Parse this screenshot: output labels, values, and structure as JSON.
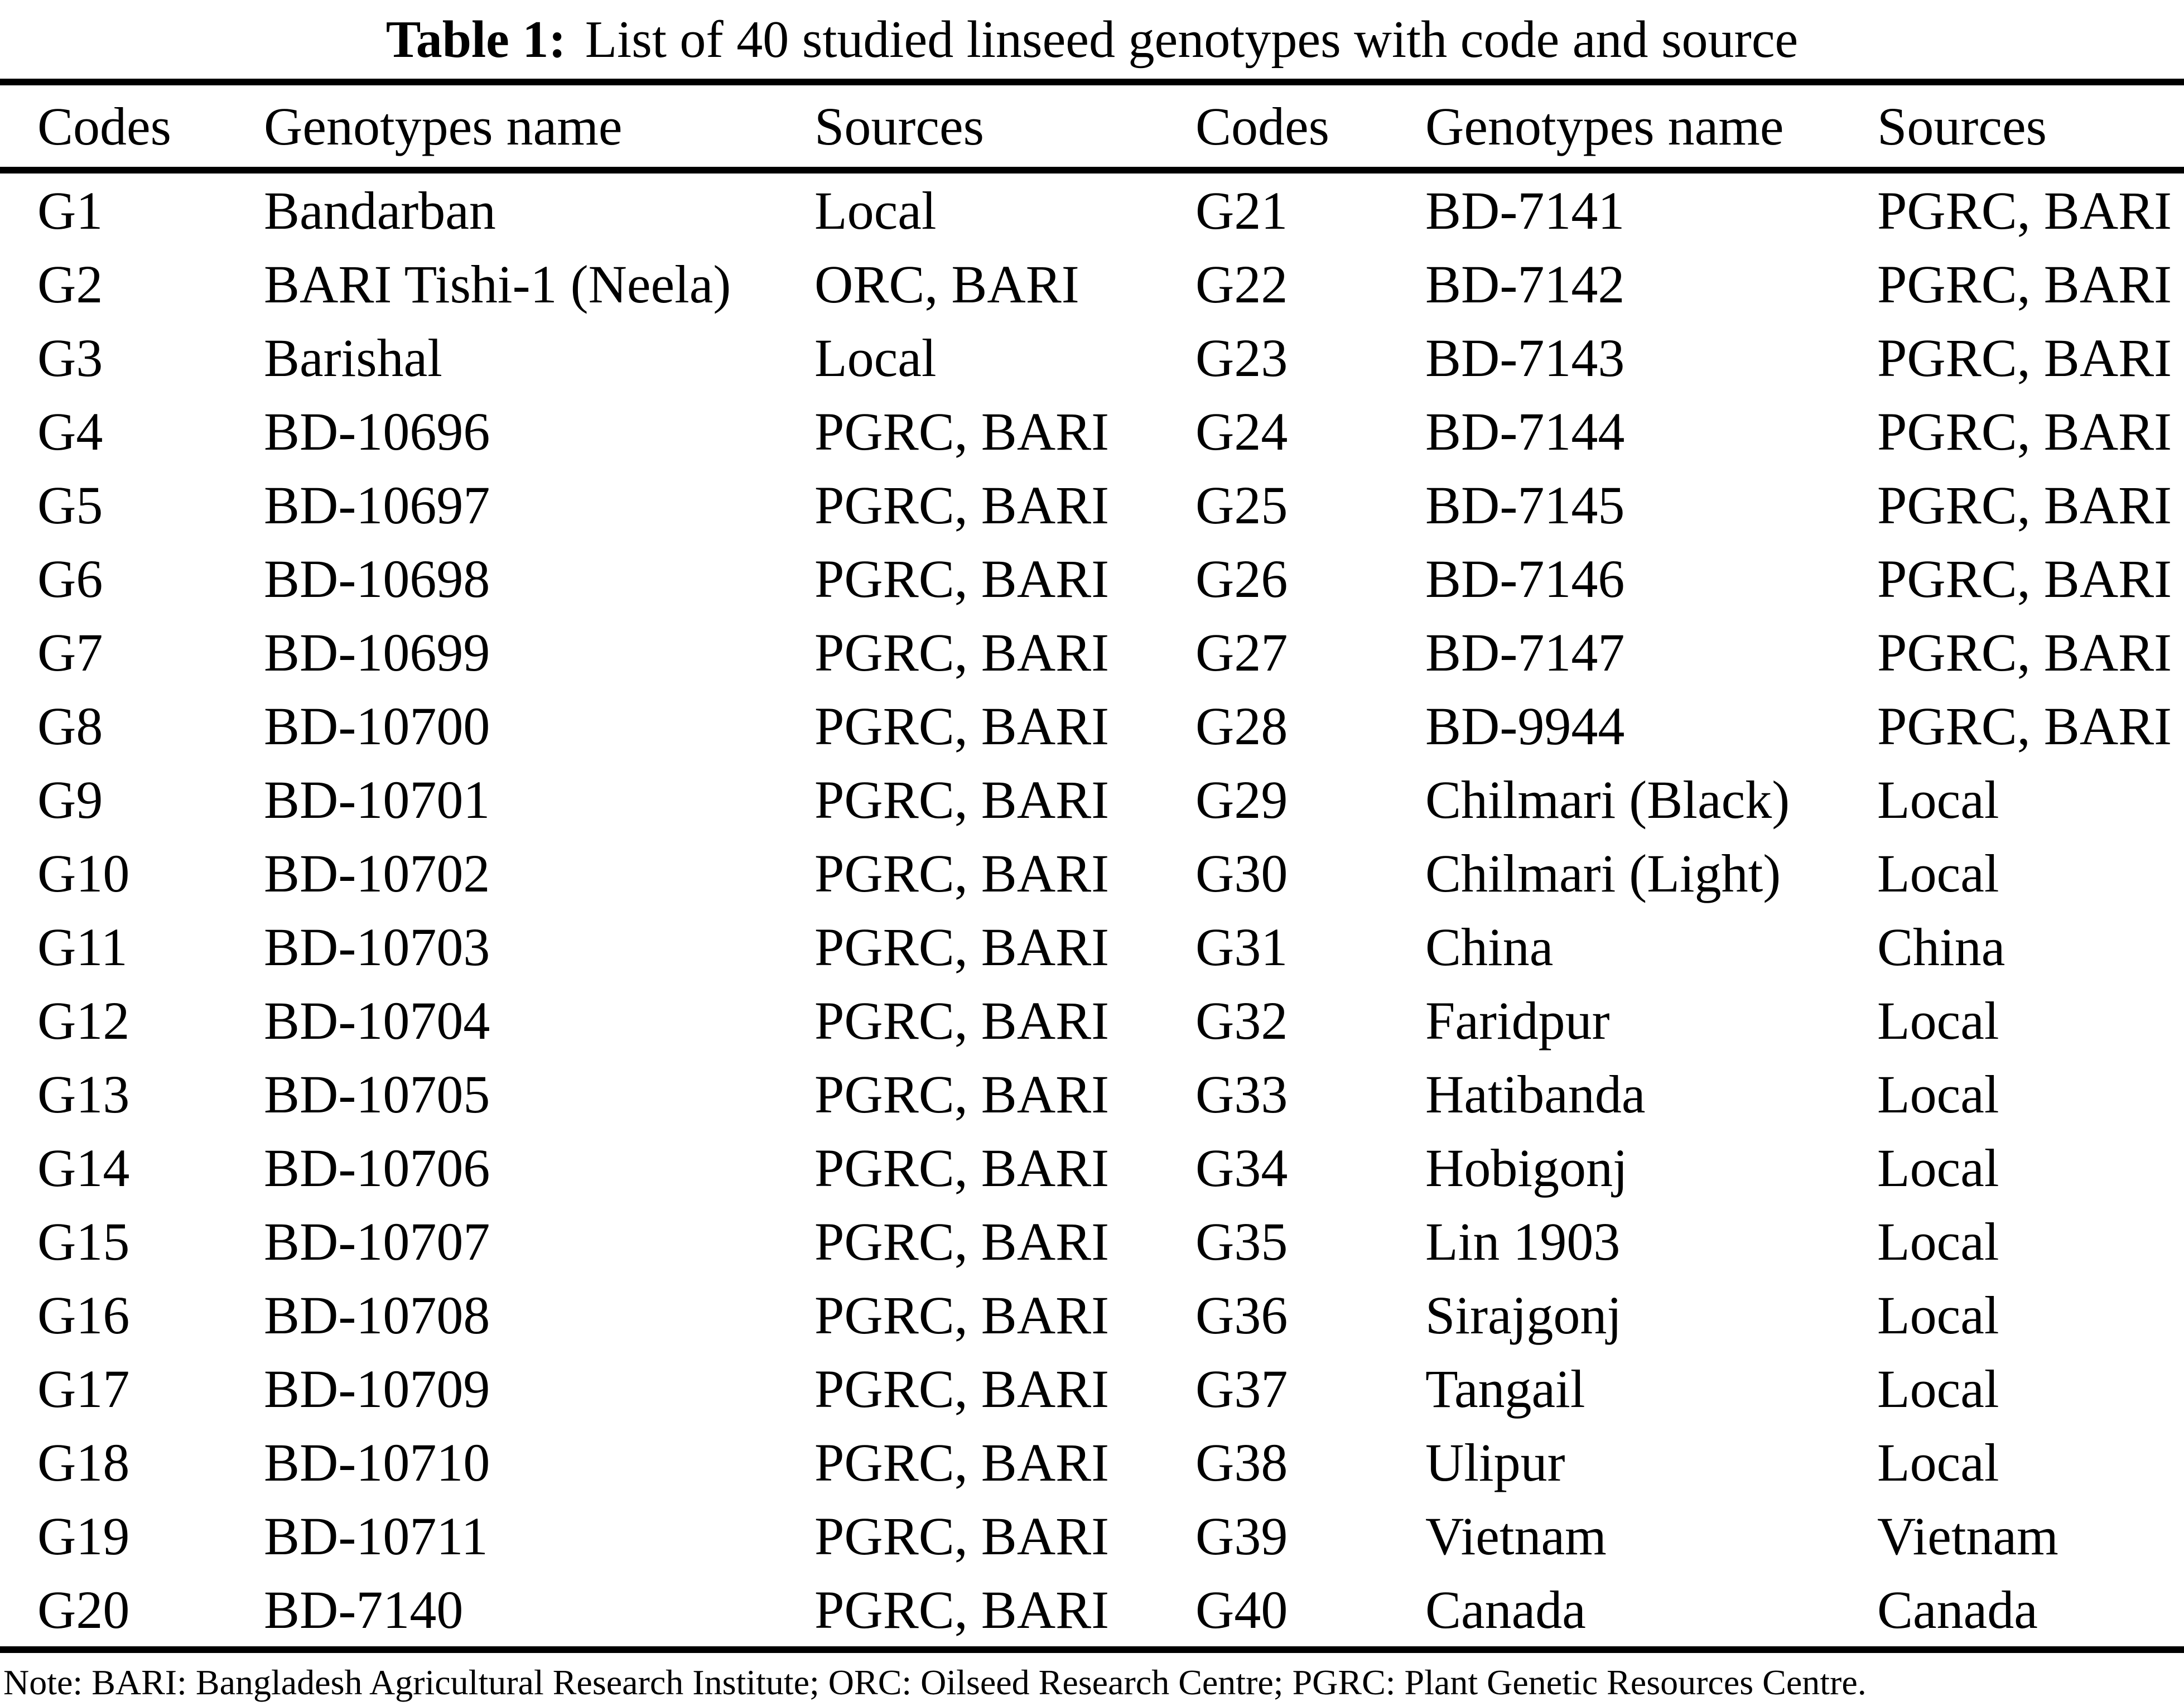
{
  "title": {
    "label": "Table 1:",
    "text": "List of 40 studied linseed genotypes with code and source"
  },
  "table": {
    "headers": [
      "Codes",
      "Genotypes name",
      "Sources",
      "Codes",
      "Genotypes name",
      "Sources"
    ],
    "rows": [
      [
        "G1",
        "Bandarban",
        "Local",
        "G21",
        "BD-7141",
        "PGRC, BARI"
      ],
      [
        "G2",
        "BARI Tishi-1 (Neela)",
        "ORC, BARI",
        "G22",
        "BD-7142",
        "PGRC, BARI"
      ],
      [
        "G3",
        "Barishal",
        "Local",
        "G23",
        "BD-7143",
        "PGRC, BARI"
      ],
      [
        "G4",
        "BD-10696",
        "PGRC, BARI",
        "G24",
        "BD-7144",
        "PGRC, BARI"
      ],
      [
        "G5",
        "BD-10697",
        "PGRC, BARI",
        "G25",
        "BD-7145",
        "PGRC, BARI"
      ],
      [
        "G6",
        "BD-10698",
        "PGRC, BARI",
        "G26",
        "BD-7146",
        "PGRC, BARI"
      ],
      [
        "G7",
        "BD-10699",
        "PGRC, BARI",
        "G27",
        "BD-7147",
        "PGRC, BARI"
      ],
      [
        "G8",
        "BD-10700",
        "PGRC, BARI",
        "G28",
        "BD-9944",
        "PGRC, BARI"
      ],
      [
        "G9",
        "BD-10701",
        "PGRC, BARI",
        "G29",
        "Chilmari (Black)",
        "Local"
      ],
      [
        "G10",
        "BD-10702",
        "PGRC, BARI",
        "G30",
        "Chilmari (Light)",
        "Local"
      ],
      [
        "G11",
        "BD-10703",
        "PGRC, BARI",
        "G31",
        "China",
        "China"
      ],
      [
        "G12",
        "BD-10704",
        "PGRC, BARI",
        "G32",
        "Faridpur",
        "Local"
      ],
      [
        "G13",
        "BD-10705",
        "PGRC, BARI",
        "G33",
        "Hatibanda",
        "Local"
      ],
      [
        "G14",
        "BD-10706",
        "PGRC, BARI",
        "G34",
        "Hobigonj",
        "Local"
      ],
      [
        "G15",
        "BD-10707",
        "PGRC, BARI",
        "G35",
        "Lin 1903",
        "Local"
      ],
      [
        "G16",
        "BD-10708",
        "PGRC, BARI",
        "G36",
        "Sirajgonj",
        "Local"
      ],
      [
        "G17",
        "BD-10709",
        "PGRC, BARI",
        "G37",
        "Tangail",
        "Local"
      ],
      [
        "G18",
        "BD-10710",
        "PGRC, BARI",
        "G38",
        "Ulipur",
        "Local"
      ],
      [
        "G19",
        "BD-10711",
        "PGRC, BARI",
        "G39",
        "Vietnam",
        "Vietnam"
      ],
      [
        "G20",
        "BD-7140",
        "PGRC, BARI",
        "G40",
        "Canada",
        "Canada"
      ]
    ]
  },
  "note": "Note: BARI: Bangladesh Agricultural Research Institute; ORC: Oilseed Research Centre; PGRC: Plant Genetic Resources Centre."
}
